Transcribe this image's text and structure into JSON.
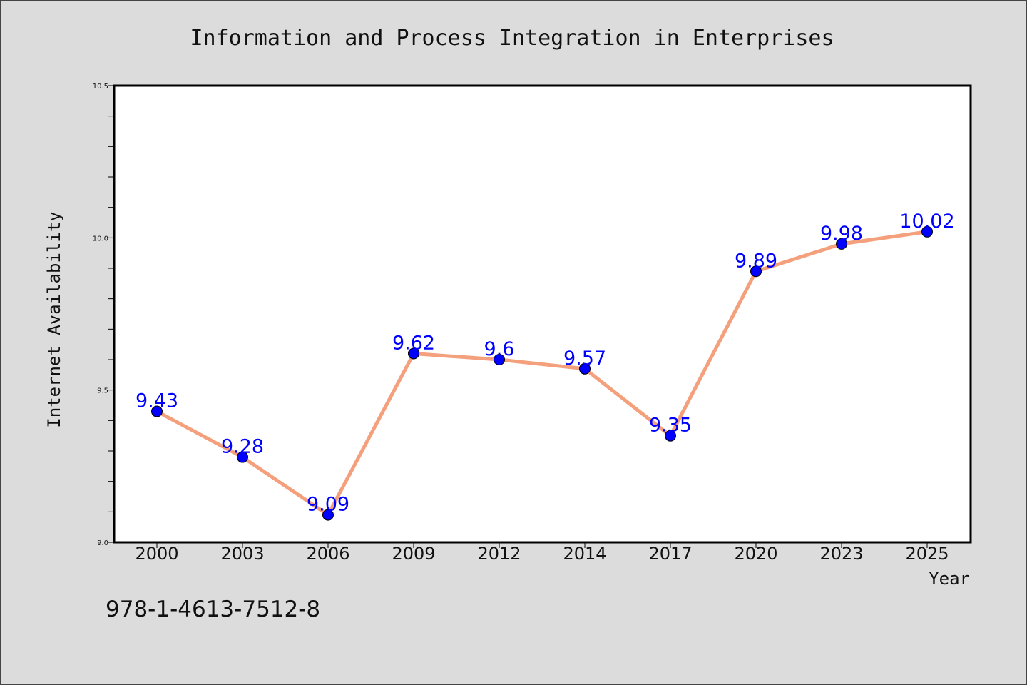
{
  "chart_data": {
    "type": "line",
    "title": "Information and Process Integration in Enterprises",
    "xlabel": "Year",
    "ylabel": "Internet Availability",
    "categories": [
      "2000",
      "2003",
      "2006",
      "2009",
      "2012",
      "2014",
      "2017",
      "2020",
      "2023",
      "2025"
    ],
    "series": [
      {
        "values": [
          9.43,
          9.28,
          9.09,
          9.62,
          9.6,
          9.57,
          9.35,
          9.89,
          9.98,
          10.02
        ],
        "labels": [
          "9.43",
          "9.28",
          "9.09",
          "9.62",
          "9.6",
          "9.57",
          "9.35",
          "9.89",
          "9.98",
          "10.02"
        ],
        "line_color": "#f4a07c",
        "marker_color": "#0000ff"
      }
    ],
    "ylim": [
      9.0,
      10.5
    ],
    "yticks": [
      "9.0",
      "9.5",
      "10.0",
      "10.5"
    ],
    "grid": false,
    "background": "#dcdcdc",
    "plot_background": "#ffffff"
  },
  "footer": {
    "isbn": "978-1-4613-7512-8"
  }
}
